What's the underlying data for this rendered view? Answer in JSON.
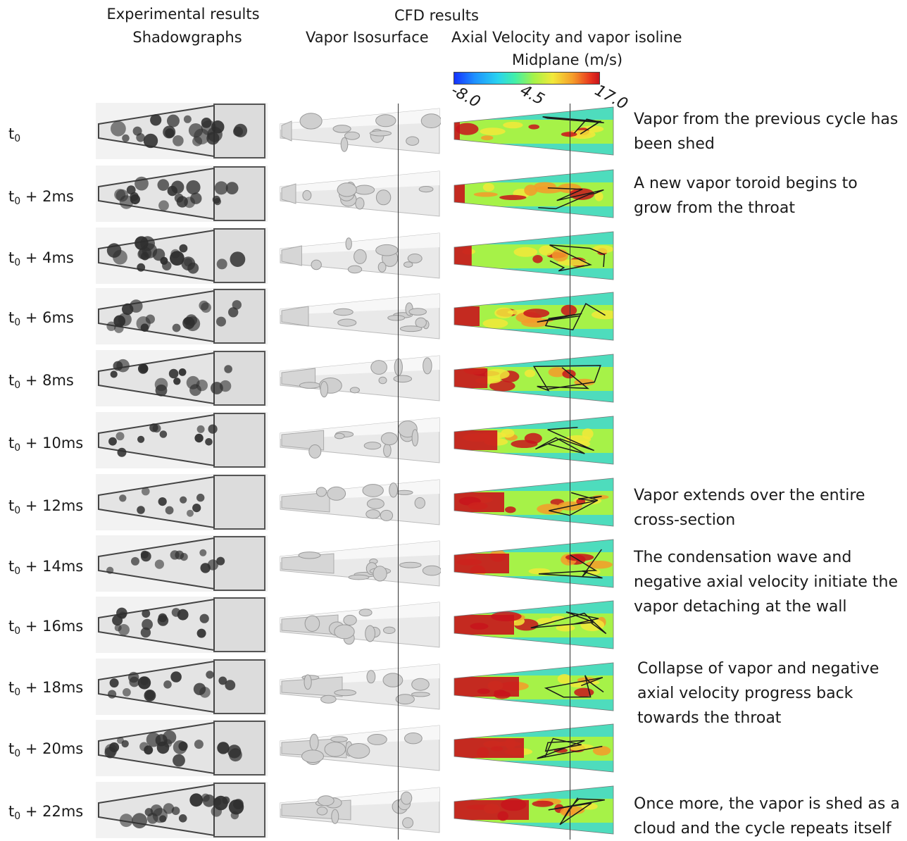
{
  "headers": {
    "experimental_line1": "Experimental results",
    "experimental_line2": "Shadowgraphs",
    "cfd_title": "CFD results",
    "vapor_isosurface": "Vapor Isosurface",
    "axial_velocity": "Axial Velocity and vapor isoline",
    "midplane": "Midplane (m/s)"
  },
  "colorbar": {
    "min_label": "-8.0",
    "mid_label": "4.5",
    "max_label": "17.0",
    "colors": [
      "#1432ff",
      "#29d3f0",
      "#a6f248",
      "#f2e93a",
      "#f59b2a",
      "#c8141c"
    ]
  },
  "rows": [
    {
      "label_base": "t",
      "label_sub": "0",
      "label_suffix": "",
      "throat_jet": 0.0,
      "exp_vapor": 0.85,
      "annotation": [
        "Vapor from the previous cycle has",
        "been shed"
      ]
    },
    {
      "label_base": "t",
      "label_sub": "0",
      "label_suffix": " + 2ms",
      "throat_jet": 0.05,
      "exp_vapor": 0.8,
      "annotation": [
        "A new vapor toroid begins to",
        "grow from the throat"
      ]
    },
    {
      "label_base": "t",
      "label_sub": "0",
      "label_suffix": " + 4ms",
      "throat_jet": 0.12,
      "exp_vapor": 0.75,
      "annotation": []
    },
    {
      "label_base": "t",
      "label_sub": "0",
      "label_suffix": " + 6ms",
      "throat_jet": 0.2,
      "exp_vapor": 0.7,
      "annotation": []
    },
    {
      "label_base": "t",
      "label_sub": "0",
      "label_suffix": " + 8ms",
      "throat_jet": 0.28,
      "exp_vapor": 0.55,
      "annotation": []
    },
    {
      "label_base": "t",
      "label_sub": "0",
      "label_suffix": " + 10ms",
      "throat_jet": 0.38,
      "exp_vapor": 0.25,
      "annotation": []
    },
    {
      "label_base": "t",
      "label_sub": "0",
      "label_suffix": " + 12ms",
      "throat_jet": 0.45,
      "exp_vapor": 0.15,
      "annotation": [
        "Vapor extends over the entire",
        "cross-section"
      ]
    },
    {
      "label_base": "t",
      "label_sub": "0",
      "label_suffix": " + 14ms",
      "throat_jet": 0.5,
      "exp_vapor": 0.35,
      "annotation": [
        "The condensation wave and",
        "negative axial velocity initiate the",
        "vapor detaching at the wall"
      ]
    },
    {
      "label_base": "t",
      "label_sub": "0",
      "label_suffix": " + 16ms",
      "throat_jet": 0.55,
      "exp_vapor": 0.45,
      "annotation": []
    },
    {
      "label_base": "t",
      "label_sub": "0",
      "label_suffix": " + 18ms",
      "throat_jet": 0.6,
      "exp_vapor": 0.55,
      "annotation": [
        "Collapse of vapor and negative",
        "axial velocity progress back",
        "towards the throat"
      ]
    },
    {
      "label_base": "t",
      "label_sub": "0",
      "label_suffix": " + 20ms",
      "throat_jet": 0.65,
      "exp_vapor": 0.7,
      "annotation": []
    },
    {
      "label_base": "t",
      "label_sub": "0",
      "label_suffix": " + 22ms",
      "throat_jet": 0.7,
      "exp_vapor": 0.8,
      "annotation": [
        "Once more, the vapor is shed as a",
        "cloud and the cycle repeats itself"
      ]
    }
  ]
}
